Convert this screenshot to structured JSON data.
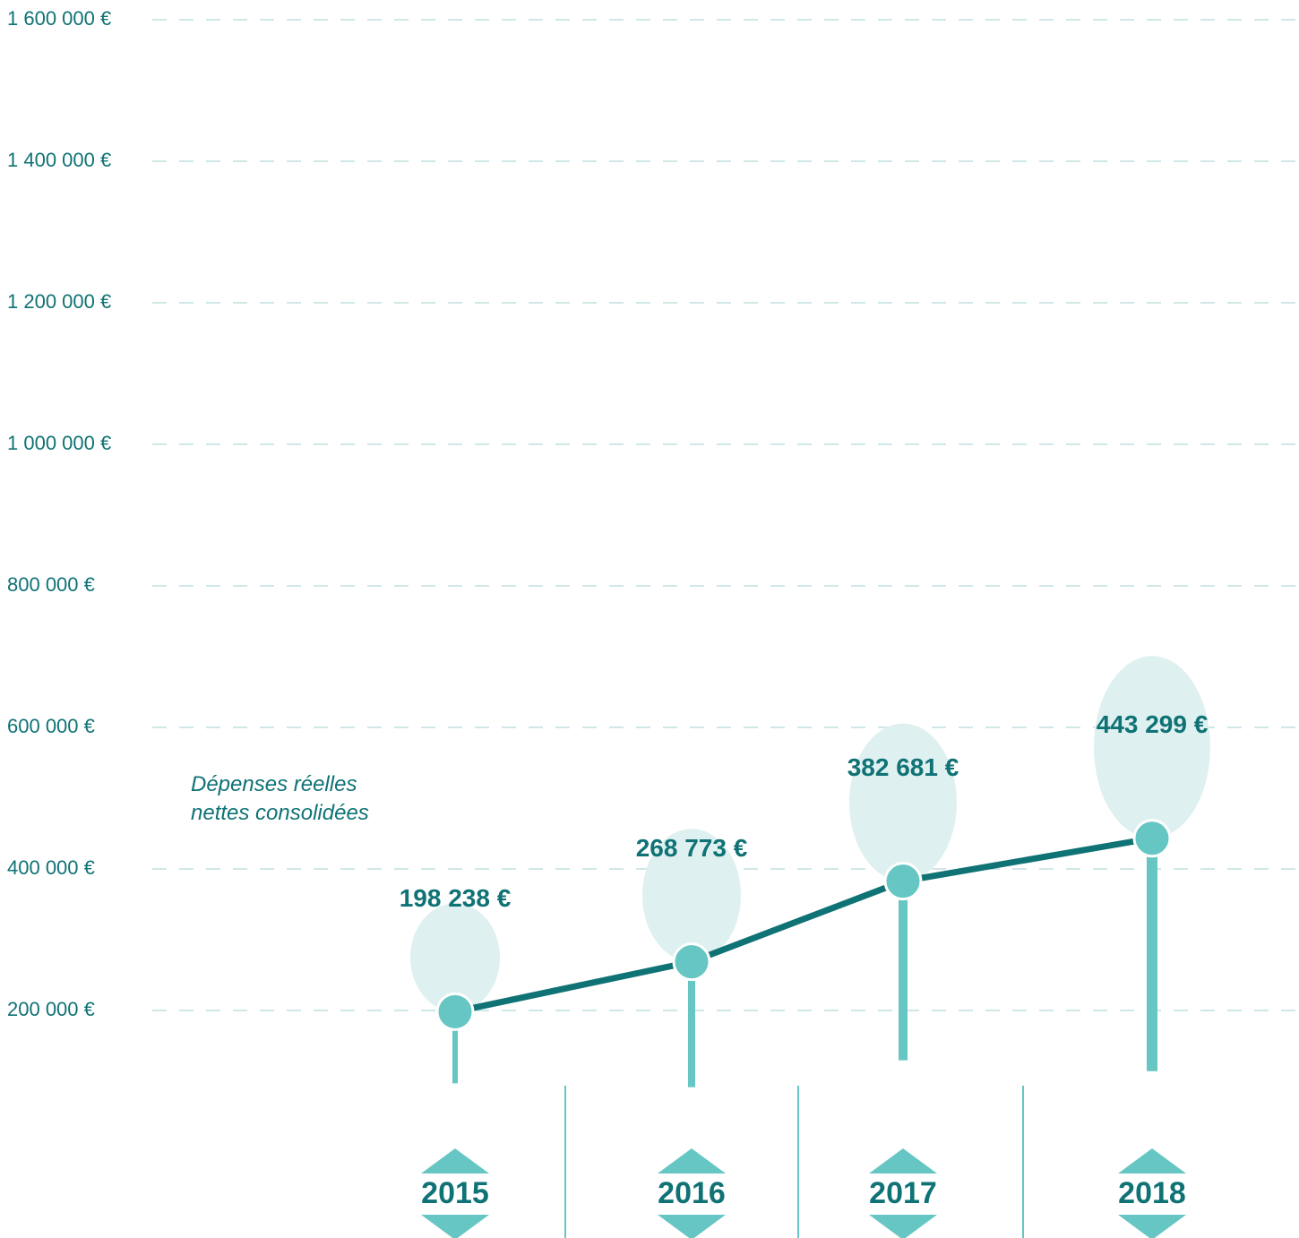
{
  "chart_data": {
    "type": "line",
    "categories": [
      "2015",
      "2016",
      "2017",
      "2018"
    ],
    "series": [
      {
        "name": "Dépenses réelles nettes consolidées",
        "color": "#0f7275",
        "values": [
          198238,
          268773,
          382681,
          443299
        ],
        "value_labels": [
          "198 238 €",
          "268 773 €",
          "382 681 €",
          "443 299 €"
        ]
      }
    ],
    "ylim": [
      0,
      1600000
    ],
    "yticks": [
      {
        "value": 200000,
        "label": "200 000 €"
      },
      {
        "value": 400000,
        "label": "400 000 €"
      },
      {
        "value": 600000,
        "label": "600 000 €"
      },
      {
        "value": 800000,
        "label": "800 000 €"
      },
      {
        "value": 1000000,
        "label": "1 000 000 €"
      },
      {
        "value": 1200000,
        "label": "1 200 000 €"
      },
      {
        "value": 1400000,
        "label": "1 400 000 €"
      },
      {
        "value": 1600000,
        "label": "1 600 000 €"
      }
    ],
    "grid": true
  }
}
